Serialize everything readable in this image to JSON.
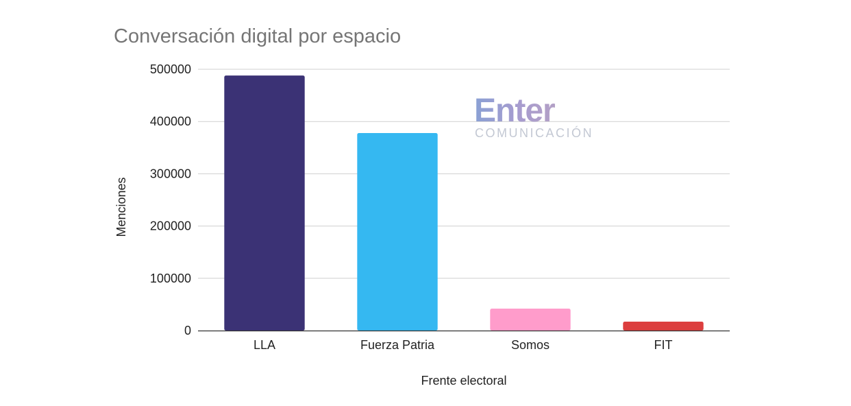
{
  "chart_data": {
    "type": "bar",
    "title": "Conversación digital por espacio",
    "xlabel": "Frente electoral",
    "ylabel": "Menciones",
    "categories": [
      "LLA",
      "Fuerza Patria",
      "Somos",
      "FIT"
    ],
    "values": [
      488000,
      378000,
      42000,
      17000
    ],
    "colors": [
      "#3b3275",
      "#35b8f1",
      "#ff9ccb",
      "#dc3e3e"
    ],
    "yticks": [
      "0",
      "100000",
      "200000",
      "300000",
      "400000",
      "500000"
    ],
    "ylim": [
      0,
      500000
    ],
    "grid": true,
    "legend": "none"
  },
  "watermark": {
    "brand": "Enter",
    "subtitle": "COMUNICACIÓN",
    "gradient": [
      "#8aa0d4",
      "#a79ccf",
      "#b3a0c6"
    ]
  }
}
